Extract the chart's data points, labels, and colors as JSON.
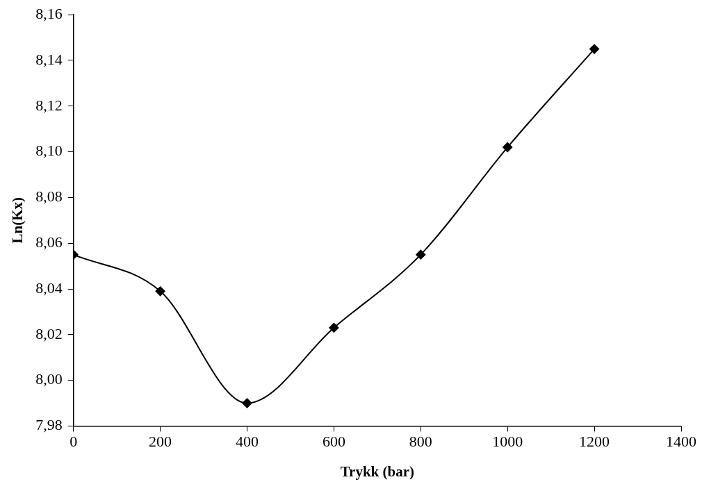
{
  "chart_data": {
    "type": "line",
    "xlabel": "Trykk (bar)",
    "ylabel": "Ln(Kx)",
    "x": [
      0,
      200,
      400,
      600,
      800,
      1000,
      1200
    ],
    "series": [
      {
        "color": "#000000",
        "values": [
          8.055,
          8.039,
          7.99,
          8.023,
          8.055,
          8.102,
          8.145
        ]
      }
    ],
    "xlim": [
      0,
      1400
    ],
    "xticks": [
      0,
      200,
      400,
      600,
      800,
      1000,
      1200,
      1400
    ],
    "ylim": [
      7.98,
      8.16
    ],
    "yticks": [
      {
        "value": 7.98,
        "label": "7,98"
      },
      {
        "value": 8.0,
        "label": "8,00"
      },
      {
        "value": 8.02,
        "label": "8,02"
      },
      {
        "value": 8.04,
        "label": "8,04"
      },
      {
        "value": 8.06,
        "label": "8,06"
      },
      {
        "value": 8.08,
        "label": "8,08"
      },
      {
        "value": 8.1,
        "label": "8,10"
      },
      {
        "value": 8.12,
        "label": "8,12"
      },
      {
        "value": 8.14,
        "label": "8,14"
      },
      {
        "value": 8.16,
        "label": "8,16"
      }
    ],
    "grid": false,
    "legend": false,
    "marker": "diamond",
    "line_style": "solid"
  }
}
